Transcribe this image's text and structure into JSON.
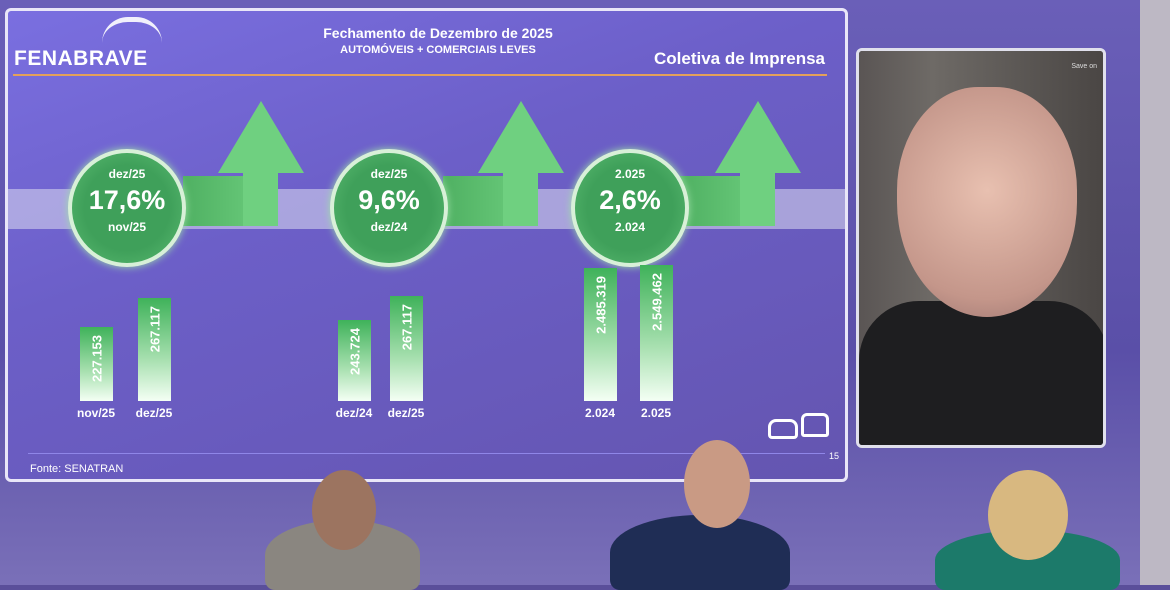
{
  "slide": {
    "logo": {
      "name": "FENABRAVE"
    },
    "title": "Fechamento de Dezembro de 2025",
    "subtitle": "AUTOMÓVEIS + COMERCIAIS LEVES",
    "tag": "Coletiva de Imprensa",
    "source": "Fonte: SENATRAN",
    "page_number": "15",
    "accent_color": "#4fb062",
    "icons": [
      "car-icon",
      "truck-icon"
    ]
  },
  "chart_data": {
    "type": "bar",
    "groups": [
      {
        "growth": "17,6%",
        "top_label": "dez/25",
        "bottom_label": "nov/25",
        "categories": [
          "nov/25",
          "dez/25"
        ],
        "values": [
          227153,
          267117
        ],
        "value_labels": [
          "227.153",
          "267.117"
        ]
      },
      {
        "growth": "9,6%",
        "top_label": "dez/25",
        "bottom_label": "dez/24",
        "categories": [
          "dez/24",
          "dez/25"
        ],
        "values": [
          243724,
          267117
        ],
        "value_labels": [
          "243.724",
          "267.117"
        ]
      },
      {
        "growth": "2,6%",
        "top_label": "2.025",
        "bottom_label": "2.024",
        "categories": [
          "2.024",
          "2.025"
        ],
        "values": [
          2485319,
          2549462
        ],
        "value_labels": [
          "2.485.319",
          "2.549.462"
        ]
      }
    ]
  },
  "video": {
    "status": "Save on"
  }
}
